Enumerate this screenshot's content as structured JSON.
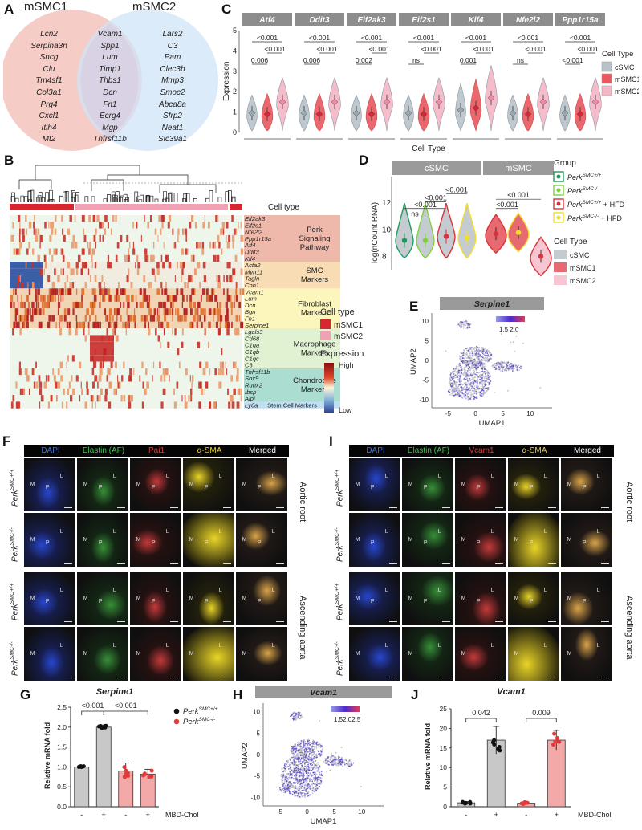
{
  "figure_labels": {
    "A": "A",
    "B": "B",
    "C": "C",
    "D": "D",
    "E": "E",
    "F": "F",
    "G": "G",
    "H": "H",
    "I": "I",
    "J": "J"
  },
  "panelA": {
    "left_title": "mSMC1",
    "right_title": "mSMC2",
    "left_only": [
      "Lcn2",
      "Serpina3n",
      "Sncg",
      "Clu",
      "Tm4sf1",
      "Col3a1",
      "Prg4",
      "Cxcl1",
      "Itih4",
      "Mt2"
    ],
    "shared": [
      "Vcam1",
      "Spp1",
      "Lum",
      "Timp1",
      "Thbs1",
      "Dcn",
      "Fn1",
      "Ecrg4",
      "Mgp",
      "Tnfrsf11b"
    ],
    "right_only": [
      "Lars2",
      "C3",
      "Pam",
      "Clec3b",
      "Mmp3",
      "Smoc2",
      "Abca8a",
      "Sfrp2",
      "Neat1",
      "Slc39a1"
    ],
    "colors": {
      "left": "#f6c9c4",
      "right": "#cfe4f7",
      "overlap": "#e3cfe0"
    }
  },
  "panelC": {
    "genes": [
      "Atf4",
      "Ddit3",
      "Eif2ak3",
      "Eif2s1",
      "Klf4",
      "Nfe2l2",
      "Ppp1r15a"
    ],
    "ylabel": "Expression",
    "xlabel": "Cell Type",
    "yticks": [
      "0",
      "1",
      "2",
      "3",
      "4",
      "5"
    ],
    "pvals": [
      [
        "<0.001",
        "<0.001",
        "0.006"
      ],
      [
        "<0.001",
        "<0.001",
        "0.006"
      ],
      [
        "<0.001",
        "<0.001",
        "0.002"
      ],
      [
        "<0.001",
        "<0.001",
        "ns"
      ],
      [
        "<0.001",
        "<0.001",
        "0.001"
      ],
      [
        "<0.001",
        "<0.001",
        "ns"
      ],
      [
        "<0.001",
        "<0.001",
        "<0.001"
      ]
    ],
    "legend_title": "Cell Type",
    "legend": [
      "cSMC",
      "mSMC1",
      "mSMC2"
    ],
    "colors": {
      "cSMC": "#b7c3c9",
      "mSMC1": "#e8585e",
      "mSMC2": "#f5b6c6"
    }
  },
  "panelB": {
    "celltype_label": "Cell type",
    "genes": [
      "Eif2ak3",
      "Eif2s1",
      "Nfe2l2",
      "Ppp1r15a",
      "Atf4",
      "Ddit3",
      "Klf4",
      "Acta2",
      "Myh11",
      "Tagln",
      "Cnn1",
      "Vcam1",
      "Lum",
      "Dcn",
      "Bgn",
      "Fn1",
      "Serpine1",
      "Lgals3",
      "Cd68",
      "C1qa",
      "C1qb",
      "C1qc",
      "C3",
      "Tnfrsf11b",
      "Sox9",
      "Runx2",
      "Ibsp",
      "Alpl",
      "Ly6a"
    ],
    "groups": [
      {
        "label": "Perk Signaling Pathway",
        "lines": [
          "Perk",
          "Signaling",
          "Pathway"
        ],
        "color": "#e8a08f"
      },
      {
        "label": "SMC Markers",
        "lines": [
          "SMC",
          "Markers"
        ],
        "color": "#f6d09a"
      },
      {
        "label": "Fibroblast Markers",
        "lines": [
          "Fibroblast",
          "Markers"
        ],
        "color": "#fbf1a6"
      },
      {
        "label": "Macrophage Markers",
        "lines": [
          "Macrophage",
          "Markers"
        ],
        "color": "#d5edc2"
      },
      {
        "label": "Chondrocyte Markers",
        "lines": [
          "Chondrocyte",
          "Markers"
        ],
        "color": "#8fd1c2"
      },
      {
        "label": "Stem Cell Markers",
        "lines": [
          "Stem Cell Markers"
        ],
        "color": "#a9d3ef"
      }
    ],
    "legend_celltype_title": "Cell type",
    "legend_celltypes": [
      {
        "name": "mSMC1",
        "color": "#d72630"
      },
      {
        "name": "mSMC2",
        "color": "#f0a2b5"
      }
    ],
    "legend_expr_title": "Expression",
    "legend_expr_high": "High",
    "legend_expr_low": "Low"
  },
  "panelD": {
    "facets": [
      "cSMC",
      "mSMC"
    ],
    "ylabel": "log(nCount RNA)",
    "yticks": [
      "8",
      "10",
      "12"
    ],
    "pvals_left": [
      "ns",
      "<0.001",
      "<0.001",
      "<0.001"
    ],
    "pvals_right": [
      "<0.001",
      "<0.001"
    ],
    "legend_group_title": "Group",
    "legend_groups": [
      {
        "name": "Perk",
        "sup": "SMC+/+",
        "suffix": "",
        "color": "#1e9a5c"
      },
      {
        "name": "Perk",
        "sup": "SMC-/-",
        "suffix": "",
        "color": "#7fd13b"
      },
      {
        "name": "Perk",
        "sup": "SMC+/+",
        "suffix": " + HFD",
        "color": "#d8323a"
      },
      {
        "name": "Perk",
        "sup": "SMC-/-",
        "suffix": " + HFD",
        "color": "#f2de2a"
      }
    ],
    "legend_cell_title": "Cell Type",
    "legend_cells": [
      {
        "name": "cSMC",
        "color": "#c5ccd1"
      },
      {
        "name": "mSMC1",
        "color": "#e66a6f"
      },
      {
        "name": "mSMC2",
        "color": "#f7c6d2"
      }
    ]
  },
  "panelE": {
    "title": "Serpine1",
    "xlabel": "UMAP1",
    "ylabel": "UMAP2",
    "scale": "1.5 2.0",
    "xticks": [
      "-5",
      "0",
      "5",
      "10"
    ],
    "yticks": [
      "-10",
      "-5",
      "0",
      "5",
      "10"
    ]
  },
  "panelF": {
    "columns": [
      "DAPI",
      "Elastin (AF)",
      "Pai1",
      "α-SMA",
      "Merged"
    ],
    "column_colors": [
      "#3f6fe0",
      "#3ec94a",
      "#e53a3a",
      "#ecd43a",
      "#ffffff"
    ],
    "rows": [
      {
        "gene": "Perk",
        "sup": "SMC+/+"
      },
      {
        "gene": "Perk",
        "sup": "SMC-/-"
      },
      {
        "gene": "Perk",
        "sup": "SMC+/+"
      },
      {
        "gene": "Perk",
        "sup": "SMC-/-"
      }
    ],
    "side_labels": [
      "Aortic root",
      "Ascending aorta"
    ]
  },
  "panelI": {
    "columns": [
      "DAPI",
      "Elastin (AF)",
      "Vcam1",
      "α-SMA",
      "Merged"
    ],
    "column_colors": [
      "#3f6fe0",
      "#3ec94a",
      "#e53a3a",
      "#ecd43a",
      "#ffffff"
    ],
    "rows": [
      {
        "gene": "Perk",
        "sup": "SMC+/+"
      },
      {
        "gene": "Perk",
        "sup": "SMC-/-"
      },
      {
        "gene": "Perk",
        "sup": "SMC+/+"
      },
      {
        "gene": "Perk",
        "sup": "SMC-/-"
      }
    ],
    "side_labels": [
      "Aortic root",
      "Ascending aorta"
    ]
  },
  "region_labels": [
    "M",
    "P",
    "L"
  ],
  "panelG": {
    "title": "Serpine1",
    "ylabel": "Relative mRNA fold",
    "pvals": [
      "<0.001",
      "<0.001"
    ],
    "yticks": [
      "0.0",
      "0.5",
      "1.0",
      "1.5",
      "2.0",
      "2.5"
    ],
    "xticks": [
      "-",
      "+",
      "-",
      "+"
    ],
    "treatment": "MBD-Chol",
    "legend": [
      {
        "gene": "Perk",
        "sup": "SMC+/+",
        "color": "#111111"
      },
      {
        "gene": "Perk",
        "sup": "SMC-/-",
        "color": "#e23a3a"
      }
    ]
  },
  "panelH": {
    "title": "Vcam1",
    "xlabel": "UMAP1",
    "ylabel": "UMAP2",
    "scale": "1.52.02.5",
    "xticks": [
      "-5",
      "0",
      "5",
      "10"
    ],
    "yticks": [
      "-10",
      "-5",
      "0",
      "5",
      "10"
    ]
  },
  "panelJ": {
    "title": "Vcam1",
    "ylabel": "Relative mRNA fold",
    "pvals": [
      "0.042",
      "0.009"
    ],
    "yticks": [
      "0",
      "5",
      "10",
      "15",
      "20",
      "25"
    ],
    "xticks": [
      "-",
      "+",
      "-",
      "+"
    ],
    "treatment": "MBD-Chol"
  },
  "chart_data": [
    {
      "type": "bar",
      "title": "Serpine1",
      "ylabel": "Relative mRNA fold",
      "categories": [
        "Perk SMC+/+ -",
        "Perk SMC+/+ +",
        "Perk SMC-/- -",
        "Perk SMC-/- +"
      ],
      "values": [
        1.0,
        2.0,
        0.9,
        0.82
      ],
      "errors": [
        0.02,
        0.05,
        0.2,
        0.12
      ],
      "ylim": [
        0,
        2.5
      ],
      "xlabel": "MBD-Chol"
    },
    {
      "type": "bar",
      "title": "Vcam1",
      "ylabel": "Relative mRNA fold",
      "categories": [
        "Perk SMC+/+ -",
        "Perk SMC+/+ +",
        "Perk SMC-/- -",
        "Perk SMC-/- +"
      ],
      "values": [
        1.0,
        17.0,
        0.9,
        17.0
      ],
      "errors": [
        0.3,
        3.5,
        0.3,
        2.5
      ],
      "ylim": [
        0,
        25
      ],
      "xlabel": "MBD-Chol"
    }
  ]
}
